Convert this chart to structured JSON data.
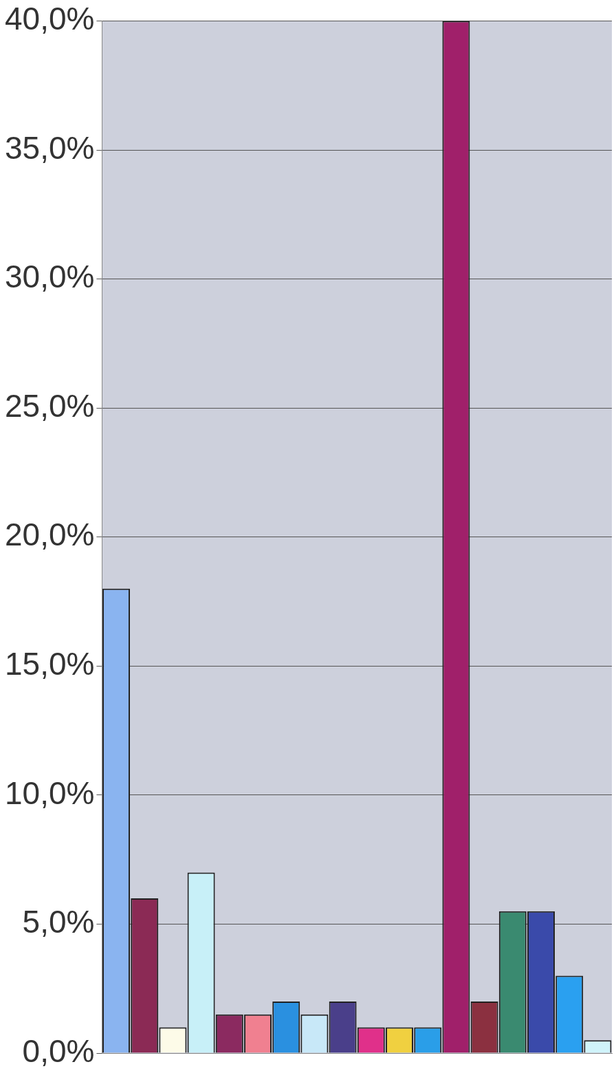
{
  "chart_data": {
    "type": "bar",
    "categories": [
      null,
      null,
      null,
      null,
      null,
      null,
      null,
      null,
      null,
      null,
      null,
      null,
      null,
      null,
      null,
      null,
      null,
      null
    ],
    "values": [
      18.0,
      6.0,
      1.0,
      7.0,
      1.5,
      1.5,
      2.0,
      1.5,
      2.0,
      1.0,
      1.0,
      1.0,
      40.0,
      2.0,
      5.5,
      5.5,
      3.0,
      0.5
    ],
    "colors": [
      "#8ab4f0",
      "#8b2a55",
      "#fdfbe8",
      "#c8f0f8",
      "#8b2a60",
      "#f08090",
      "#2a90e0",
      "#c8e8f8",
      "#4a3f8a",
      "#e0308a",
      "#f0d040",
      "#2a9ee8",
      "#a0206a",
      "#8b3040",
      "#3a8a70",
      "#3a4aaa",
      "#2aa0f0",
      "#d0f4fa"
    ],
    "ylim": [
      0,
      40
    ],
    "yticks": [
      {
        "value": 0,
        "label": "0,0%"
      },
      {
        "value": 5,
        "label": "5,0%"
      },
      {
        "value": 10,
        "label": "10,0%"
      },
      {
        "value": 15,
        "label": "15,0%"
      },
      {
        "value": 20,
        "label": "20,0%"
      },
      {
        "value": 25,
        "label": "25,0%"
      },
      {
        "value": 30,
        "label": "30,0%"
      },
      {
        "value": 35,
        "label": "35,0%"
      },
      {
        "value": 40,
        "label": "40,0%"
      }
    ],
    "grid": "y",
    "tick_labels": "y",
    "legend": false
  }
}
